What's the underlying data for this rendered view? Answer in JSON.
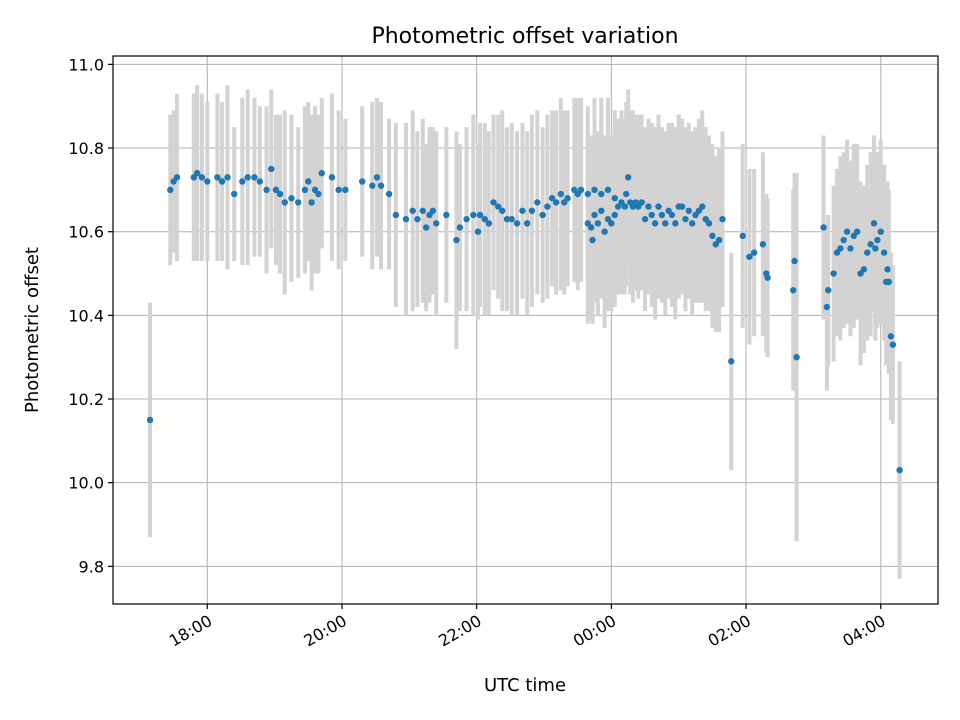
{
  "chart_data": {
    "type": "scatter",
    "title": "Photometric offset variation",
    "xlabel": "UTC time",
    "ylabel": "Photometric offset",
    "x_unit": "hours relative to 00:00 UTC",
    "xlim": [
      -7.4,
      4.85
    ],
    "ylim": [
      9.71,
      11.02
    ],
    "x_ticks": [
      {
        "value": -6,
        "label": "18:00"
      },
      {
        "value": -4,
        "label": "20:00"
      },
      {
        "value": -2,
        "label": "22:00"
      },
      {
        "value": 0,
        "label": "00:00"
      },
      {
        "value": 2,
        "label": "02:00"
      },
      {
        "value": 4,
        "label": "04:00"
      }
    ],
    "y_ticks": [
      {
        "value": 9.8,
        "label": "9.8"
      },
      {
        "value": 10.0,
        "label": "10.0"
      },
      {
        "value": 10.2,
        "label": "10.2"
      },
      {
        "value": 10.4,
        "label": "10.4"
      },
      {
        "value": 10.6,
        "label": "10.6"
      },
      {
        "value": 10.8,
        "label": "10.8"
      },
      {
        "value": 11.0,
        "label": "11.0"
      }
    ],
    "grid": true,
    "colors": {
      "points": "#1f77b4",
      "errorbars": "#d3d3d3",
      "grid": "#b0b0b0"
    },
    "series": [
      {
        "name": "offset",
        "columns": [
          "t",
          "y",
          "err"
        ],
        "points": [
          [
            -6.85,
            10.15,
            0.28
          ],
          [
            -6.55,
            10.7,
            0.18
          ],
          [
            -6.5,
            10.72,
            0.17
          ],
          [
            -6.45,
            10.73,
            0.2
          ],
          [
            -6.2,
            10.73,
            0.2
          ],
          [
            -6.15,
            10.74,
            0.21
          ],
          [
            -6.08,
            10.73,
            0.2
          ],
          [
            -6.0,
            10.72,
            0.19
          ],
          [
            -5.85,
            10.73,
            0.2
          ],
          [
            -5.78,
            10.72,
            0.19
          ],
          [
            -5.7,
            10.73,
            0.22
          ],
          [
            -5.6,
            10.69,
            0.16
          ],
          [
            -5.48,
            10.72,
            0.2
          ],
          [
            -5.4,
            10.73,
            0.21
          ],
          [
            -5.3,
            10.73,
            0.19
          ],
          [
            -5.22,
            10.72,
            0.18
          ],
          [
            -5.12,
            10.7,
            0.2
          ],
          [
            -5.05,
            10.75,
            0.19
          ],
          [
            -4.98,
            10.7,
            0.18
          ],
          [
            -4.92,
            10.69,
            0.19
          ],
          [
            -4.85,
            10.67,
            0.22
          ],
          [
            -4.75,
            10.68,
            0.2
          ],
          [
            -4.65,
            10.67,
            0.18
          ],
          [
            -4.55,
            10.7,
            0.2
          ],
          [
            -4.5,
            10.72,
            0.19
          ],
          [
            -4.45,
            10.67,
            0.21
          ],
          [
            -4.4,
            10.7,
            0.2
          ],
          [
            -4.35,
            10.69,
            0.19
          ],
          [
            -4.3,
            10.74,
            0.18
          ],
          [
            -4.15,
            10.73,
            0.2
          ],
          [
            -4.05,
            10.7,
            0.19
          ],
          [
            -3.95,
            10.7,
            0.17
          ],
          [
            -3.7,
            10.72,
            0.18
          ],
          [
            -3.55,
            10.71,
            0.2
          ],
          [
            -3.48,
            10.73,
            0.19
          ],
          [
            -3.42,
            10.71,
            0.2
          ],
          [
            -3.3,
            10.69,
            0.18
          ],
          [
            -3.2,
            10.64,
            0.22
          ],
          [
            -3.05,
            10.63,
            0.23
          ],
          [
            -2.95,
            10.65,
            0.24
          ],
          [
            -2.88,
            10.63,
            0.21
          ],
          [
            -2.8,
            10.65,
            0.22
          ],
          [
            -2.75,
            10.61,
            0.2
          ],
          [
            -2.7,
            10.64,
            0.21
          ],
          [
            -2.65,
            10.65,
            0.2
          ],
          [
            -2.6,
            10.62,
            0.22
          ],
          [
            -2.45,
            10.64,
            0.21
          ],
          [
            -2.3,
            10.58,
            0.26
          ],
          [
            -2.25,
            10.61,
            0.2
          ],
          [
            -2.15,
            10.63,
            0.22
          ],
          [
            -2.05,
            10.64,
            0.24
          ],
          [
            -1.98,
            10.6,
            0.21
          ],
          [
            -1.95,
            10.64,
            0.22
          ],
          [
            -1.88,
            10.63,
            0.23
          ],
          [
            -1.82,
            10.62,
            0.22
          ],
          [
            -1.75,
            10.67,
            0.21
          ],
          [
            -1.68,
            10.66,
            0.22
          ],
          [
            -1.62,
            10.65,
            0.24
          ],
          [
            -1.55,
            10.63,
            0.22
          ],
          [
            -1.48,
            10.63,
            0.23
          ],
          [
            -1.4,
            10.62,
            0.22
          ],
          [
            -1.32,
            10.65,
            0.21
          ],
          [
            -1.25,
            10.62,
            0.22
          ],
          [
            -1.18,
            10.65,
            0.23
          ],
          [
            -1.1,
            10.67,
            0.22
          ],
          [
            -1.02,
            10.64,
            0.21
          ],
          [
            -0.95,
            10.66,
            0.22
          ],
          [
            -0.88,
            10.68,
            0.21
          ],
          [
            -0.82,
            10.67,
            0.22
          ],
          [
            -0.75,
            10.69,
            0.23
          ],
          [
            -0.7,
            10.67,
            0.22
          ],
          [
            -0.65,
            10.68,
            0.21
          ],
          [
            -0.55,
            10.7,
            0.22
          ],
          [
            -0.5,
            10.69,
            0.23
          ],
          [
            -0.45,
            10.7,
            0.22
          ],
          [
            -0.35,
            10.69,
            0.21
          ],
          [
            -0.25,
            10.7,
            0.22
          ],
          [
            -0.15,
            10.69,
            0.23
          ],
          [
            -0.05,
            10.7,
            0.22
          ],
          [
            0.05,
            10.68,
            0.21
          ],
          [
            -0.35,
            10.62,
            0.24
          ],
          [
            -0.3,
            10.61,
            0.22
          ],
          [
            -0.28,
            10.58,
            0.2
          ],
          [
            -0.25,
            10.64,
            0.21
          ],
          [
            -0.2,
            10.62,
            0.22
          ],
          [
            -0.15,
            10.65,
            0.21
          ],
          [
            -0.1,
            10.6,
            0.23
          ],
          [
            -0.05,
            10.63,
            0.22
          ],
          [
            0.0,
            10.62,
            0.21
          ],
          [
            0.05,
            10.64,
            0.22
          ],
          [
            0.1,
            10.66,
            0.21
          ],
          [
            0.15,
            10.67,
            0.22
          ],
          [
            0.2,
            10.66,
            0.21
          ],
          [
            0.22,
            10.69,
            0.22
          ],
          [
            0.25,
            10.73,
            0.21
          ],
          [
            0.28,
            10.67,
            0.22
          ],
          [
            0.32,
            10.66,
            0.23
          ],
          [
            0.36,
            10.67,
            0.21
          ],
          [
            0.4,
            10.66,
            0.22
          ],
          [
            0.45,
            10.67,
            0.21
          ],
          [
            0.5,
            10.63,
            0.22
          ],
          [
            0.55,
            10.66,
            0.21
          ],
          [
            0.6,
            10.64,
            0.22
          ],
          [
            0.65,
            10.62,
            0.23
          ],
          [
            0.7,
            10.66,
            0.22
          ],
          [
            0.75,
            10.64,
            0.21
          ],
          [
            0.8,
            10.62,
            0.22
          ],
          [
            0.85,
            10.65,
            0.21
          ],
          [
            0.9,
            10.64,
            0.22
          ],
          [
            0.95,
            10.62,
            0.23
          ],
          [
            1.0,
            10.66,
            0.22
          ],
          [
            1.05,
            10.66,
            0.21
          ],
          [
            1.1,
            10.63,
            0.22
          ],
          [
            1.15,
            10.65,
            0.21
          ],
          [
            1.2,
            10.62,
            0.22
          ],
          [
            1.25,
            10.64,
            0.21
          ],
          [
            1.3,
            10.65,
            0.22
          ],
          [
            1.35,
            10.66,
            0.23
          ],
          [
            1.4,
            10.63,
            0.22
          ],
          [
            1.45,
            10.62,
            0.21
          ],
          [
            1.5,
            10.59,
            0.22
          ],
          [
            1.55,
            10.57,
            0.21
          ],
          [
            1.6,
            10.58,
            0.22
          ],
          [
            1.65,
            10.63,
            0.21
          ],
          [
            1.78,
            10.29,
            0.26
          ],
          [
            1.95,
            10.59,
            0.22
          ],
          [
            2.05,
            10.54,
            0.21
          ],
          [
            2.12,
            10.55,
            0.2
          ],
          [
            2.25,
            10.57,
            0.22
          ],
          [
            2.3,
            10.5,
            0.19
          ],
          [
            2.32,
            10.49,
            0.19
          ],
          [
            2.7,
            10.46,
            0.24
          ],
          [
            2.72,
            10.53,
            0.21
          ],
          [
            2.75,
            10.3,
            0.44
          ],
          [
            3.15,
            10.61,
            0.22
          ],
          [
            3.2,
            10.42,
            0.2
          ],
          [
            3.22,
            10.46,
            0.18
          ],
          [
            3.3,
            10.5,
            0.21
          ],
          [
            3.35,
            10.55,
            0.2
          ],
          [
            3.4,
            10.56,
            0.22
          ],
          [
            3.45,
            10.58,
            0.21
          ],
          [
            3.5,
            10.6,
            0.22
          ],
          [
            3.55,
            10.56,
            0.21
          ],
          [
            3.6,
            10.59,
            0.22
          ],
          [
            3.65,
            10.6,
            0.21
          ],
          [
            3.7,
            10.5,
            0.22
          ],
          [
            3.75,
            10.51,
            0.2
          ],
          [
            3.8,
            10.55,
            0.21
          ],
          [
            3.85,
            10.57,
            0.22
          ],
          [
            3.9,
            10.62,
            0.21
          ],
          [
            3.92,
            10.56,
            0.22
          ],
          [
            3.95,
            10.58,
            0.21
          ],
          [
            4.0,
            10.6,
            0.22
          ],
          [
            4.05,
            10.55,
            0.21
          ],
          [
            4.08,
            10.48,
            0.2
          ],
          [
            4.1,
            10.51,
            0.21
          ],
          [
            4.12,
            10.48,
            0.22
          ],
          [
            4.15,
            10.35,
            0.2
          ],
          [
            4.18,
            10.33,
            0.19
          ],
          [
            4.28,
            10.03,
            0.26
          ]
        ]
      }
    ]
  }
}
